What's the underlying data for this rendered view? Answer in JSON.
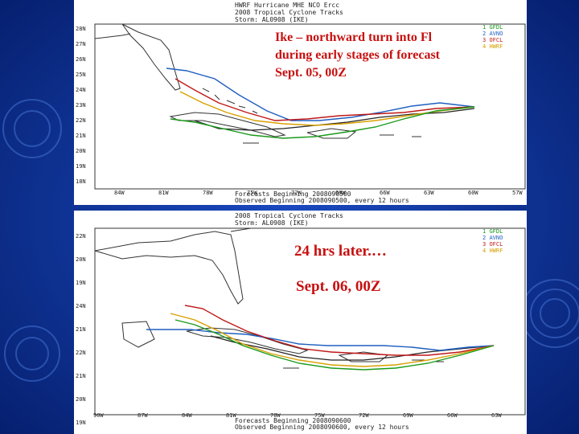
{
  "slide": {
    "caption1": [
      "Ike – northward turn into Fl",
      "during early stages of forecast",
      "Sept. 05, 00Z"
    ],
    "caption2_line1": "24 hrs later.…",
    "caption2_line2": "Sept. 06, 00Z"
  },
  "panel1": {
    "header": [
      "HWRF Hurricane MHE NCO Ercc",
      "2008 Tropical Cyclone Tracks",
      "Storm: AL0908 (IKE)"
    ],
    "footer": [
      "Forecasts Beginning 2008090500",
      "Observed Beginning 2008090500, every 12 hours"
    ],
    "lat_labels": [
      "28N",
      "27N",
      "26N",
      "25N",
      "24N",
      "23N",
      "22N",
      "21N",
      "20N",
      "19N",
      "18N"
    ],
    "lon_labels": [
      "84W",
      "81W",
      "78W",
      "75W",
      "72W",
      "69W",
      "66W",
      "63W",
      "60W",
      "57W"
    ],
    "legend": [
      {
        "num": "1",
        "name": "GFDL",
        "color": "#1a9a1a"
      },
      {
        "num": "2",
        "name": "AVNO",
        "color": "#1f5fc0"
      },
      {
        "num": "3",
        "name": "OFCL",
        "color": "#c01818"
      },
      {
        "num": "4",
        "name": "HWRF",
        "color": "#d8a000"
      }
    ]
  },
  "panel2": {
    "header": [
      "2008 Tropical Cyclone Tracks",
      "Storm: AL0908 (IKE)"
    ],
    "footer": [
      "Forecasts Beginning 2008090600",
      "Observed Beginning 2008090600, every 12 hours"
    ],
    "lat_labels": [
      "22N",
      "20N",
      "19N",
      "24N",
      "21N",
      "22N",
      "21N",
      "20N",
      "19N"
    ],
    "lon_labels": [
      "90W",
      "87W",
      "84W",
      "81W",
      "78W",
      "75W",
      "72W",
      "69W",
      "66W",
      "63W"
    ],
    "legend": [
      {
        "num": "1",
        "name": "GFDL",
        "color": "#1a9a1a"
      },
      {
        "num": "2",
        "name": "AVNO",
        "color": "#1f5fc0"
      },
      {
        "num": "3",
        "name": "OFCL",
        "color": "#c01818"
      },
      {
        "num": "4",
        "name": "HWRF",
        "color": "#d8a000"
      }
    ]
  },
  "colors": {
    "background": "#0a2a8c",
    "caption": "#c81010",
    "observed": "#222222"
  }
}
